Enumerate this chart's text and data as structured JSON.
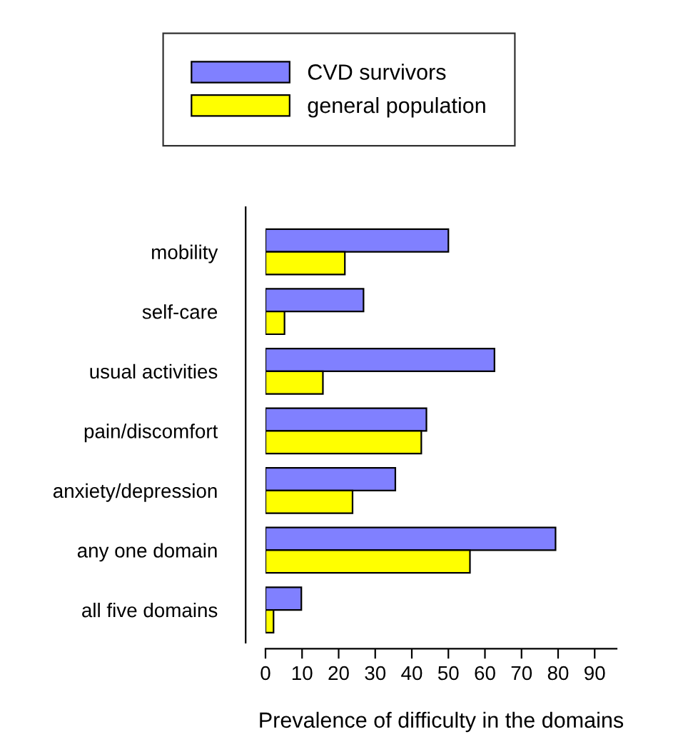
{
  "chart_data": {
    "type": "bar",
    "orientation": "horizontal",
    "xlabel": "Prevalence of difficulty in the domains",
    "categories": [
      "mobility",
      "self-care",
      "usual activities",
      "pain/discomfort",
      "anxiety/depression",
      "any one domain",
      "all five domains"
    ],
    "series": [
      {
        "name": "CVD survivors",
        "color": "#8080ff",
        "values": [
          50.0,
          26.8,
          62.6,
          44.0,
          35.5,
          79.3,
          9.8
        ]
      },
      {
        "name": "general population",
        "color": "#ffff00",
        "values": [
          21.7,
          5.2,
          15.7,
          42.6,
          23.8,
          55.9,
          2.2
        ]
      }
    ],
    "xlim": [
      0,
      96
    ],
    "xticks": [
      0,
      10,
      20,
      30,
      40,
      50,
      60,
      70,
      80,
      90
    ],
    "legend": "top",
    "grid": false
  }
}
